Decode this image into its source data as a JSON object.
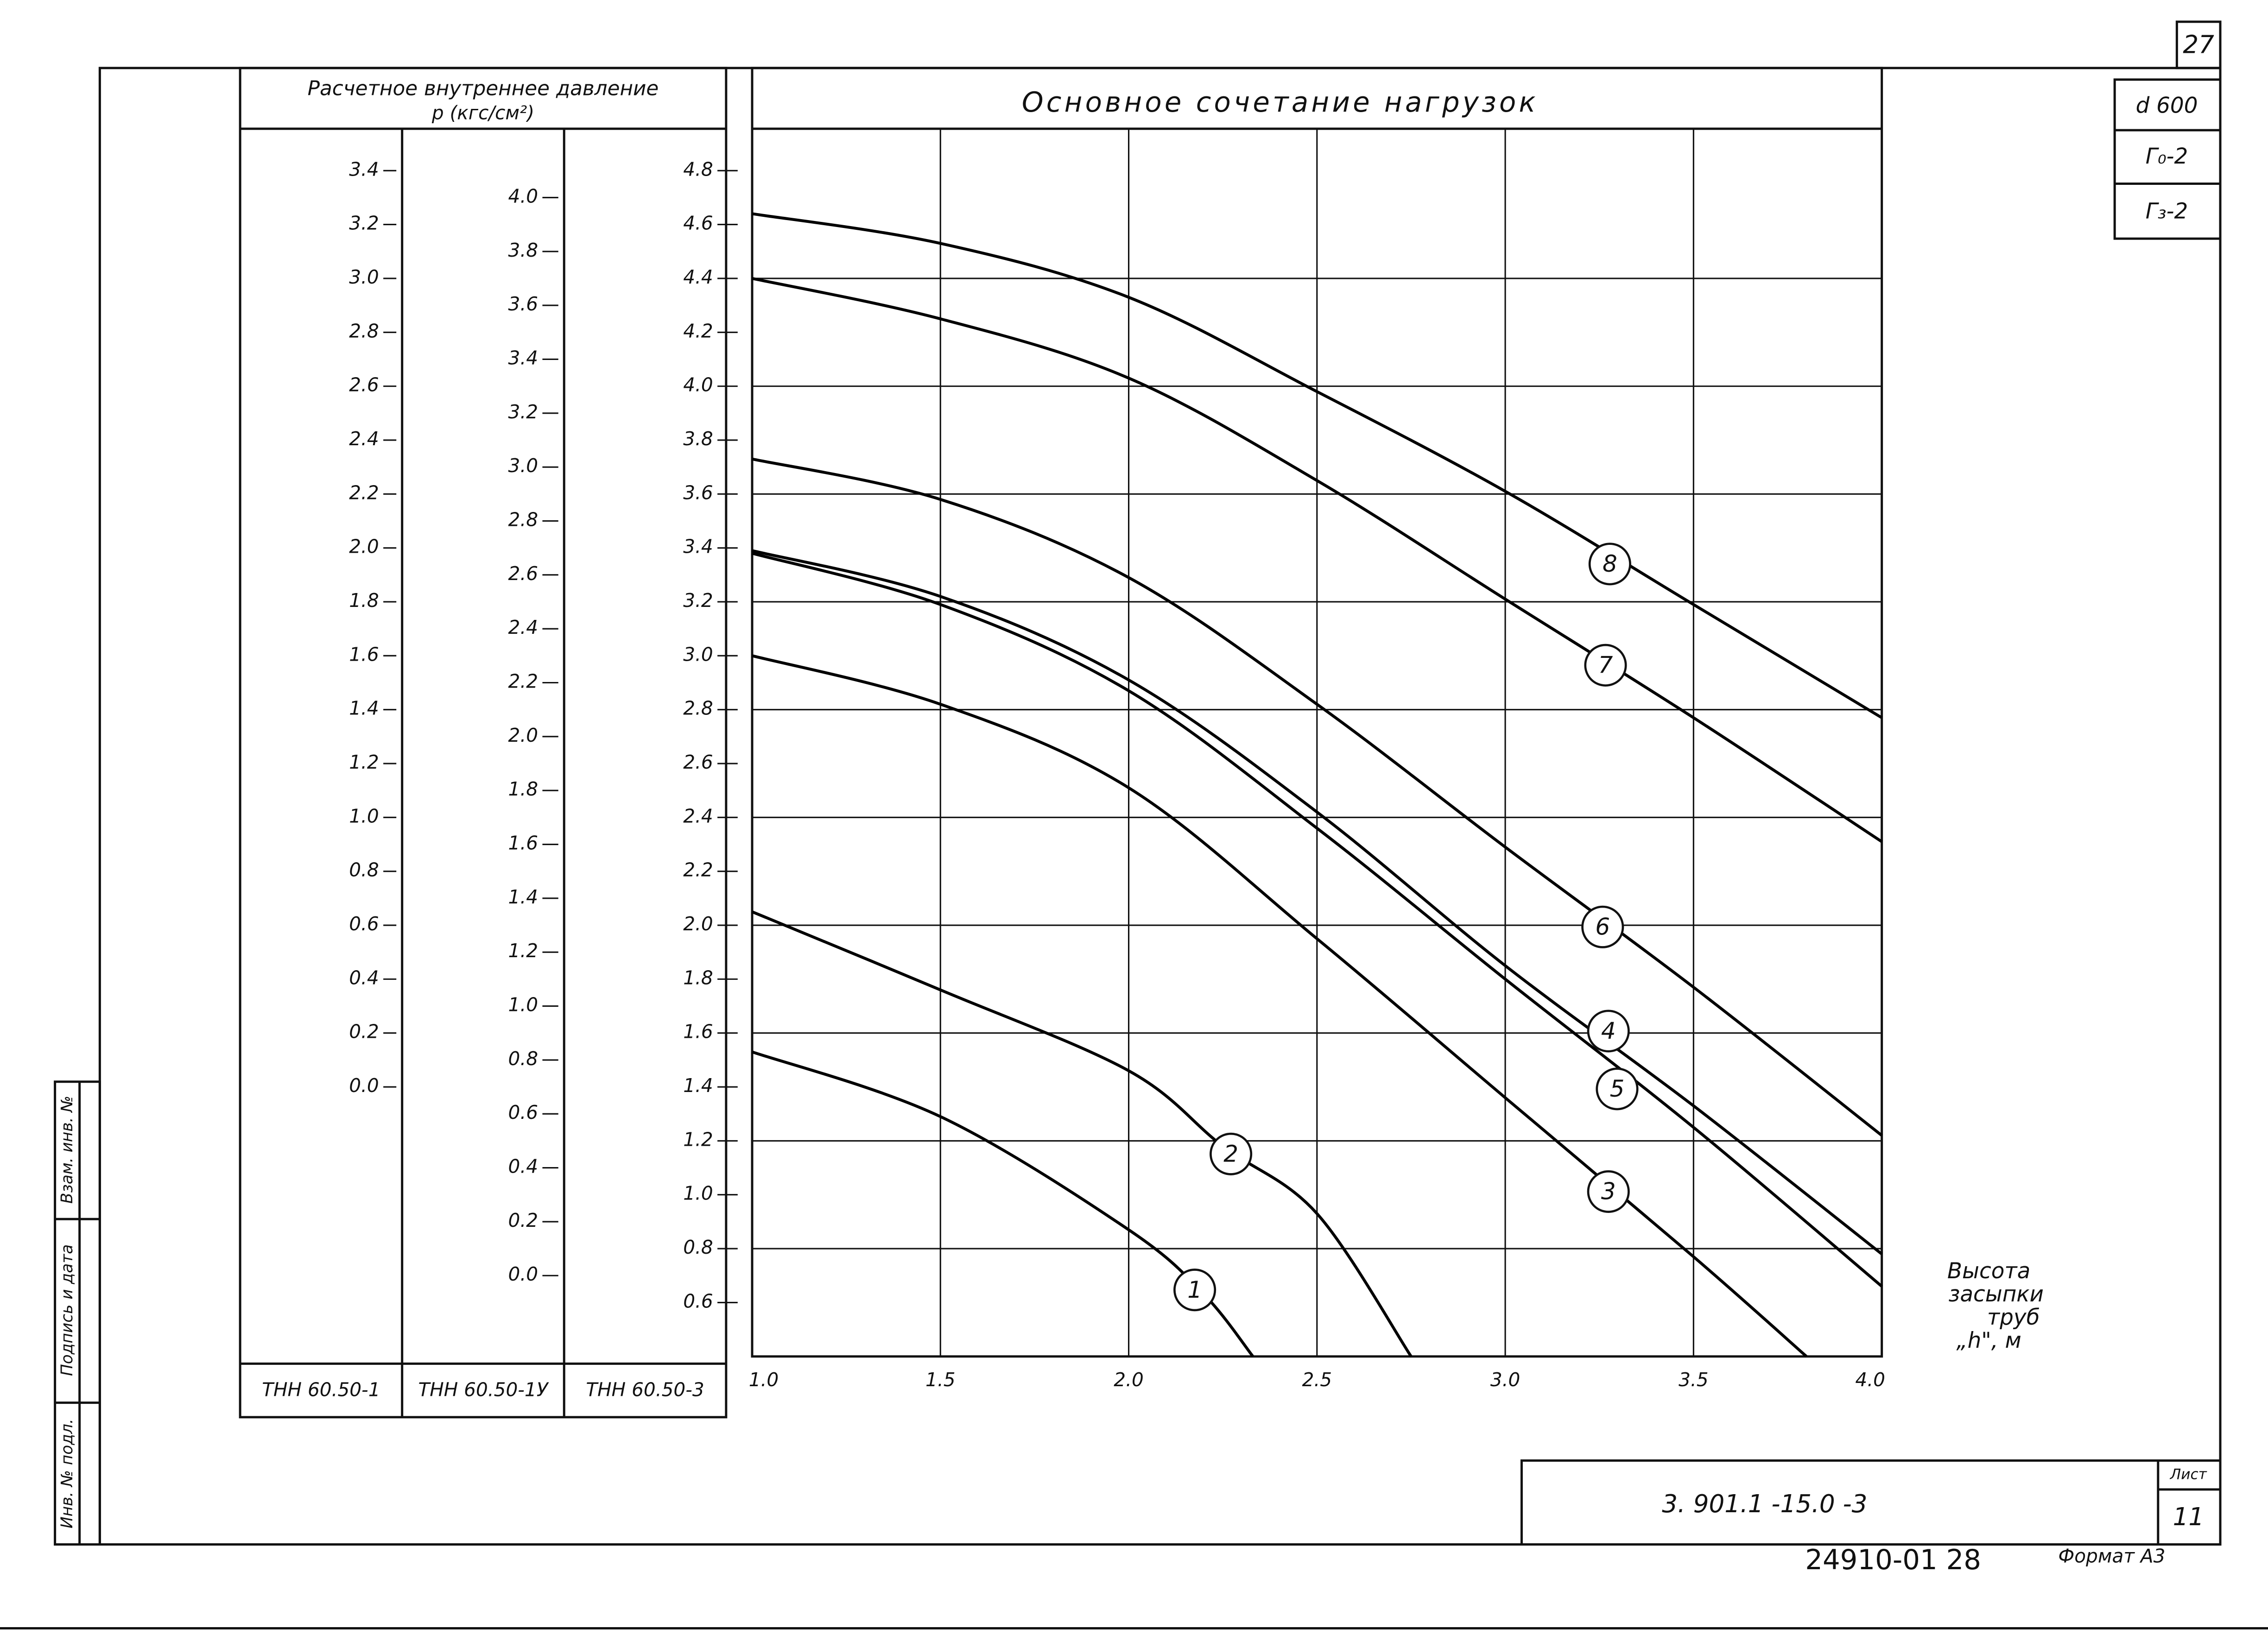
{
  "page_number": "27",
  "side_boxes": [
    "d 600",
    "Г₀-2",
    "Г₃-2"
  ],
  "stamp": [
    "Инв. № подл.",
    "Подпись и дата",
    "Взам. инв. №"
  ],
  "title_block": {
    "code": "3. 901.1 -15.0 -3",
    "sheet_label": "Лист",
    "sheet": "11",
    "archive": "24910-01  28",
    "format": "Формат А3"
  },
  "chart_data": {
    "type": "line",
    "title": "Основное сочетание нагрузок",
    "y_title": "Расчетное внутреннее давление",
    "y_unit": "р (кгс/см²)",
    "x_label": [
      "Высота",
      "засыпки",
      "труб",
      "„h\", м"
    ],
    "xlim": [
      1,
      4
    ],
    "xticks": [
      {
        "value": 1,
        "label": "1.0"
      },
      1.5,
      {
        "value": 2,
        "label": "2.0"
      },
      2.5,
      {
        "value": 3,
        "label": "3.0"
      },
      3.5,
      {
        "value": 4,
        "label": "4.0"
      }
    ],
    "y_axis_name": "ТНН 60.50-3",
    "ylim": [
      0.4,
      4.95
    ],
    "yticks": [
      0.6,
      0.8,
      {
        "value": 1,
        "label": "1.0"
      },
      1.2,
      1.4,
      1.6,
      1.8,
      {
        "value": 2,
        "label": "2.0"
      },
      2.2,
      2.4,
      2.6,
      2.8,
      {
        "value": 3,
        "label": "3.0"
      },
      3.2,
      3.4,
      3.6,
      3.8,
      {
        "value": 4,
        "label": "4.0"
      },
      4.2,
      4.4,
      4.6,
      4.8
    ],
    "ygrid": [
      0.8,
      1.2,
      1.6,
      2,
      2.4,
      2.8,
      3.2,
      3.6,
      4,
      4.4
    ],
    "grid": true,
    "color": "#000000",
    "extra_axes": [
      {
        "name": "ТНН 60.50-1",
        "ylim": [
          -1.0,
          3.55
        ],
        "yticks": [
          {
            "value": 0,
            "label": "0.0"
          },
          0.2,
          0.4,
          0.6,
          0.8,
          {
            "value": 1,
            "label": "1.0"
          },
          1.2,
          1.4,
          1.6,
          1.8,
          {
            "value": 2,
            "label": "2.0"
          },
          2.2,
          2.4,
          2.6,
          2.8,
          {
            "value": 3,
            "label": "3.0"
          },
          3.2,
          3.4
        ]
      },
      {
        "name": "ТНН 60.50-1У",
        "ylim": [
          -0.3,
          4.25
        ],
        "yticks": [
          {
            "value": 0,
            "label": "0.0"
          },
          0.2,
          0.4,
          0.6,
          0.8,
          {
            "value": 1,
            "label": "1.0"
          },
          1.2,
          1.4,
          1.6,
          1.8,
          {
            "value": 2,
            "label": "2.0"
          },
          2.2,
          2.4,
          2.6,
          2.8,
          {
            "value": 3,
            "label": "3.0"
          },
          3.2,
          3.4,
          3.6,
          3.8,
          {
            "value": 4,
            "label": "4.0"
          }
        ]
      }
    ],
    "series": [
      {
        "name": "1",
        "x": [
          1,
          1.5,
          2,
          2.2,
          2.33
        ],
        "values": [
          1.53,
          1.29,
          0.87,
          0.63,
          0.4
        ]
      },
      {
        "name": "2",
        "x": [
          1,
          1.5,
          2,
          2.25,
          2.5,
          2.75
        ],
        "values": [
          2.05,
          1.76,
          1.46,
          1.18,
          0.93,
          0.4
        ]
      },
      {
        "name": "3",
        "x": [
          1,
          1.5,
          2,
          2.5,
          3,
          3.5,
          3.8
        ],
        "values": [
          3.0,
          2.82,
          2.51,
          1.95,
          1.36,
          0.77,
          0.4
        ]
      },
      {
        "name": "4",
        "x": [
          1,
          1.5,
          2,
          2.5,
          3,
          3.5,
          4
        ],
        "values": [
          3.39,
          3.22,
          2.91,
          2.42,
          1.85,
          1.33,
          0.78
        ]
      },
      {
        "name": "5",
        "x": [
          1,
          1.5,
          2,
          2.5,
          3,
          3.5,
          4
        ],
        "values": [
          3.38,
          3.19,
          2.87,
          2.36,
          1.8,
          1.25,
          0.66
        ]
      },
      {
        "name": "6",
        "x": [
          1,
          1.5,
          2,
          2.5,
          3,
          3.5,
          4
        ],
        "values": [
          3.73,
          3.58,
          3.29,
          2.82,
          2.29,
          1.77,
          1.22
        ]
      },
      {
        "name": "7",
        "x": [
          1,
          1.5,
          2,
          2.5,
          3,
          3.5,
          4
        ],
        "values": [
          4.4,
          4.25,
          4.03,
          3.65,
          3.21,
          2.77,
          2.31
        ]
      },
      {
        "name": "8",
        "x": [
          1,
          1.5,
          2,
          2.5,
          3,
          3.5,
          4
        ],
        "values": [
          4.64,
          4.53,
          4.33,
          3.98,
          3.61,
          3.19,
          2.77
        ]
      }
    ]
  }
}
